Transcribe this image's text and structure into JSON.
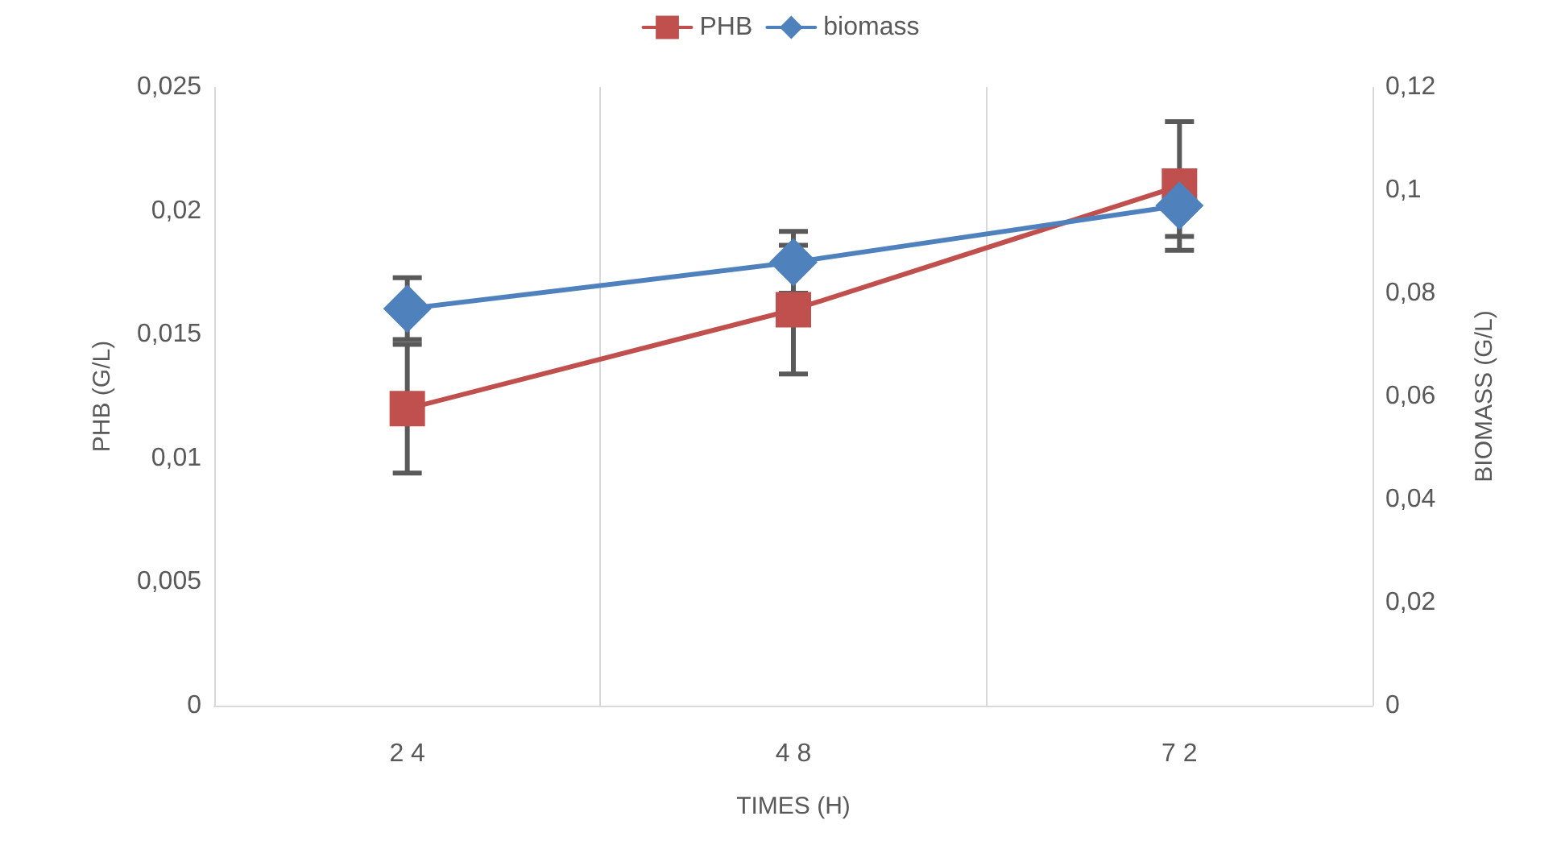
{
  "chart_data": {
    "type": "line",
    "xlabel": "TIMES (H)",
    "ylabel": "PHB (G/L)",
    "y2label": "BIOMASS (G/L)",
    "categories": [
      "2 4",
      "4 8",
      "7 2"
    ],
    "series": [
      {
        "name": "PHB",
        "color": "#c0504d",
        "marker": "square",
        "values": [
          0.012,
          0.016,
          0.021
        ],
        "errors": [
          0.0026,
          0.0026,
          0.0026
        ]
      },
      {
        "name": "biomass",
        "color": "#4f81bd",
        "marker": "diamond",
        "axis": "y2",
        "values": [
          0.077,
          0.086,
          0.097
        ],
        "errors": [
          0.006,
          0.006,
          0.006
        ]
      }
    ],
    "ylim": [
      0,
      0.025
    ],
    "yticks": [
      {
        "value": 0,
        "label": "0"
      },
      {
        "value": 0.005,
        "label": "0,005"
      },
      {
        "value": 0.01,
        "label": "0,01"
      },
      {
        "value": 0.015,
        "label": "0,015"
      },
      {
        "value": 0.02,
        "label": "0,02"
      },
      {
        "value": 0.025,
        "label": "0,025"
      }
    ],
    "y2lim": [
      0,
      0.12
    ],
    "y2ticks": [
      {
        "value": 0,
        "label": "0"
      },
      {
        "value": 0.02,
        "label": "0,02"
      },
      {
        "value": 0.04,
        "label": "0,04"
      },
      {
        "value": 0.06,
        "label": "0,06"
      },
      {
        "value": 0.08,
        "label": "0,08"
      },
      {
        "value": 0.1,
        "label": "0,1"
      },
      {
        "value": 0.12,
        "label": "0,12"
      }
    ],
    "grid": "x",
    "legend": "top",
    "line_style": "solid"
  }
}
